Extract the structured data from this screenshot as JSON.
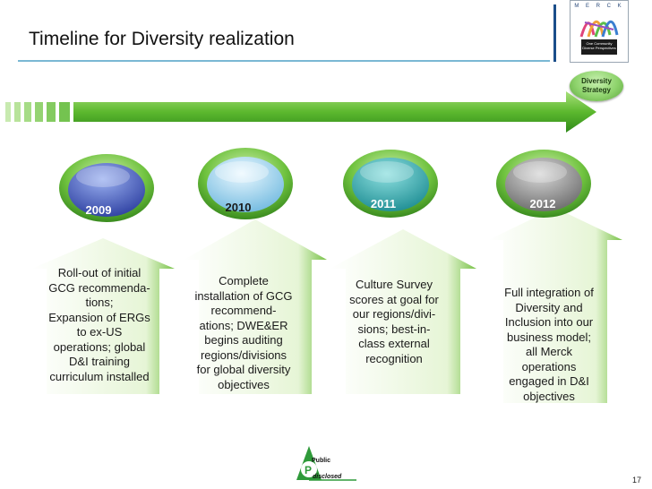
{
  "slide": {
    "title": "Timeline for Diversity realization",
    "page_number": "17"
  },
  "logo": {
    "letters": "M E R C K",
    "tagline": "One Community\nDiverse Perspectives"
  },
  "strategy_badge": {
    "line1": "Diversity",
    "line2": "Strategy"
  },
  "milestones": [
    {
      "year": "2009",
      "text": "Roll-out of initial\nGCG recommenda-\ntions;\nExpansion of ERGs\nto ex-US\noperations; global\nD&I training\ncurriculum installed",
      "circle_color": "#3a4fb0"
    },
    {
      "year": "2010",
      "text": "Complete\ninstallation of GCG\nrecommend-\nations; DWE&ER\nbegins auditing\nregions/divisions\nfor global diversity\nobjectives",
      "circle_color": "#8ccbe8"
    },
    {
      "year": "2011",
      "text": "Culture Survey\nscores at goal for\nour regions/divi-\nsions; best-in-\nclass external\nrecognition",
      "circle_color": "#2aa5a8"
    },
    {
      "year": "2012",
      "text": "Full integration of\nDiversity and\nInclusion into our\nbusiness model;\nall Merck\noperations\nengaged in D&I\nobjectives",
      "circle_color": "#8a8a8a"
    }
  ],
  "footer": {
    "public_label": "Public",
    "disclosed_label": "disclosed",
    "p_letter": "P"
  }
}
